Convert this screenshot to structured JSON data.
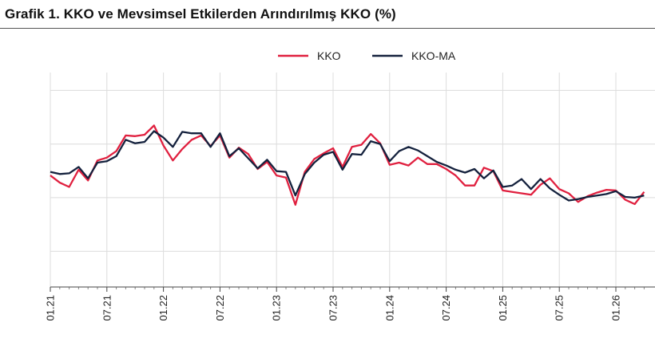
{
  "title": "Grafik 1. KKO ve Mevsimsel Etkilerden Arındırılmış KKO (%)",
  "chart_data": {
    "type": "line",
    "title": "Grafik 1. KKO ve Mevsimsel Etkilerden Arındırılmış KKO (%)",
    "xlabel": "",
    "ylabel": "",
    "x_tick_labels": [
      "01.21",
      "07.21",
      "01.22",
      "07.22",
      "01.23",
      "07.23",
      "01.24",
      "07.24",
      "01.25",
      "07.25",
      "01.26"
    ],
    "y_tick_labels": [],
    "grid": "vertical and horizontal",
    "legend_position": "top-right",
    "colors": {
      "KKO": "#e0203f",
      "KKO-MA": "#14213d"
    },
    "x": [
      "01.21",
      "02.21",
      "03.21",
      "04.21",
      "05.21",
      "06.21",
      "07.21",
      "08.21",
      "09.21",
      "10.21",
      "11.21",
      "12.21",
      "01.22",
      "02.22",
      "03.22",
      "04.22",
      "05.22",
      "06.22",
      "07.22",
      "08.22",
      "09.22",
      "10.22",
      "11.22",
      "12.22",
      "01.23",
      "02.23",
      "03.23",
      "04.23",
      "05.23",
      "06.23",
      "07.23",
      "08.23",
      "09.23",
      "10.23",
      "11.23",
      "12.23",
      "01.24",
      "02.24",
      "03.24",
      "04.24",
      "05.24",
      "06.24",
      "07.24",
      "08.24",
      "09.24",
      "10.24",
      "11.24",
      "12.24",
      "01.25",
      "02.25",
      "03.25",
      "04.25",
      "05.25",
      "06.25",
      "07.25",
      "08.25",
      "09.25",
      "10.25",
      "11.25",
      "12.25",
      "01.26",
      "02.26",
      "03.26",
      "04.26"
    ],
    "series": [
      {
        "name": "KKO",
        "values": [
          75.6,
          74.6,
          74.0,
          76.4,
          74.9,
          77.7,
          78.1,
          79.0,
          81.2,
          81.1,
          81.3,
          82.6,
          79.8,
          77.7,
          79.3,
          80.6,
          81.2,
          79.7,
          81.2,
          78.1,
          79.5,
          78.6,
          76.5,
          77.5,
          75.6,
          75.3,
          71.5,
          76.1,
          77.9,
          78.7,
          79.4,
          76.8,
          79.6,
          79.9,
          81.4,
          80.1,
          77.1,
          77.4,
          77.0,
          78.1,
          77.2,
          77.2,
          76.5,
          75.6,
          74.2,
          74.2,
          76.7,
          76.2,
          73.5,
          73.3,
          73.1,
          72.9,
          74.3,
          75.2,
          73.7,
          73.1,
          71.9,
          72.7,
          73.2,
          73.6,
          73.5,
          72.2,
          71.6,
          73.3
        ]
      },
      {
        "name": "KKO-MA",
        "values": [
          76.1,
          75.8,
          75.9,
          76.8,
          75.2,
          77.4,
          77.6,
          78.3,
          80.6,
          80.1,
          80.3,
          81.8,
          80.9,
          79.6,
          81.7,
          81.5,
          81.5,
          79.6,
          81.5,
          78.3,
          79.4,
          78.0,
          76.6,
          77.8,
          76.2,
          76.1,
          72.8,
          75.8,
          77.4,
          78.5,
          78.9,
          76.4,
          78.6,
          78.5,
          80.4,
          80.0,
          77.6,
          79.0,
          79.6,
          79.1,
          78.3,
          77.5,
          77.0,
          76.4,
          76.0,
          76.5,
          75.2,
          76.3,
          74.0,
          74.2,
          75.1,
          73.7,
          75.1,
          73.8,
          72.9,
          72.1,
          72.3,
          72.6,
          72.8,
          73.0,
          73.4,
          72.6,
          72.5,
          72.8
        ]
      }
    ],
    "ylim": [
      60,
      90
    ]
  }
}
